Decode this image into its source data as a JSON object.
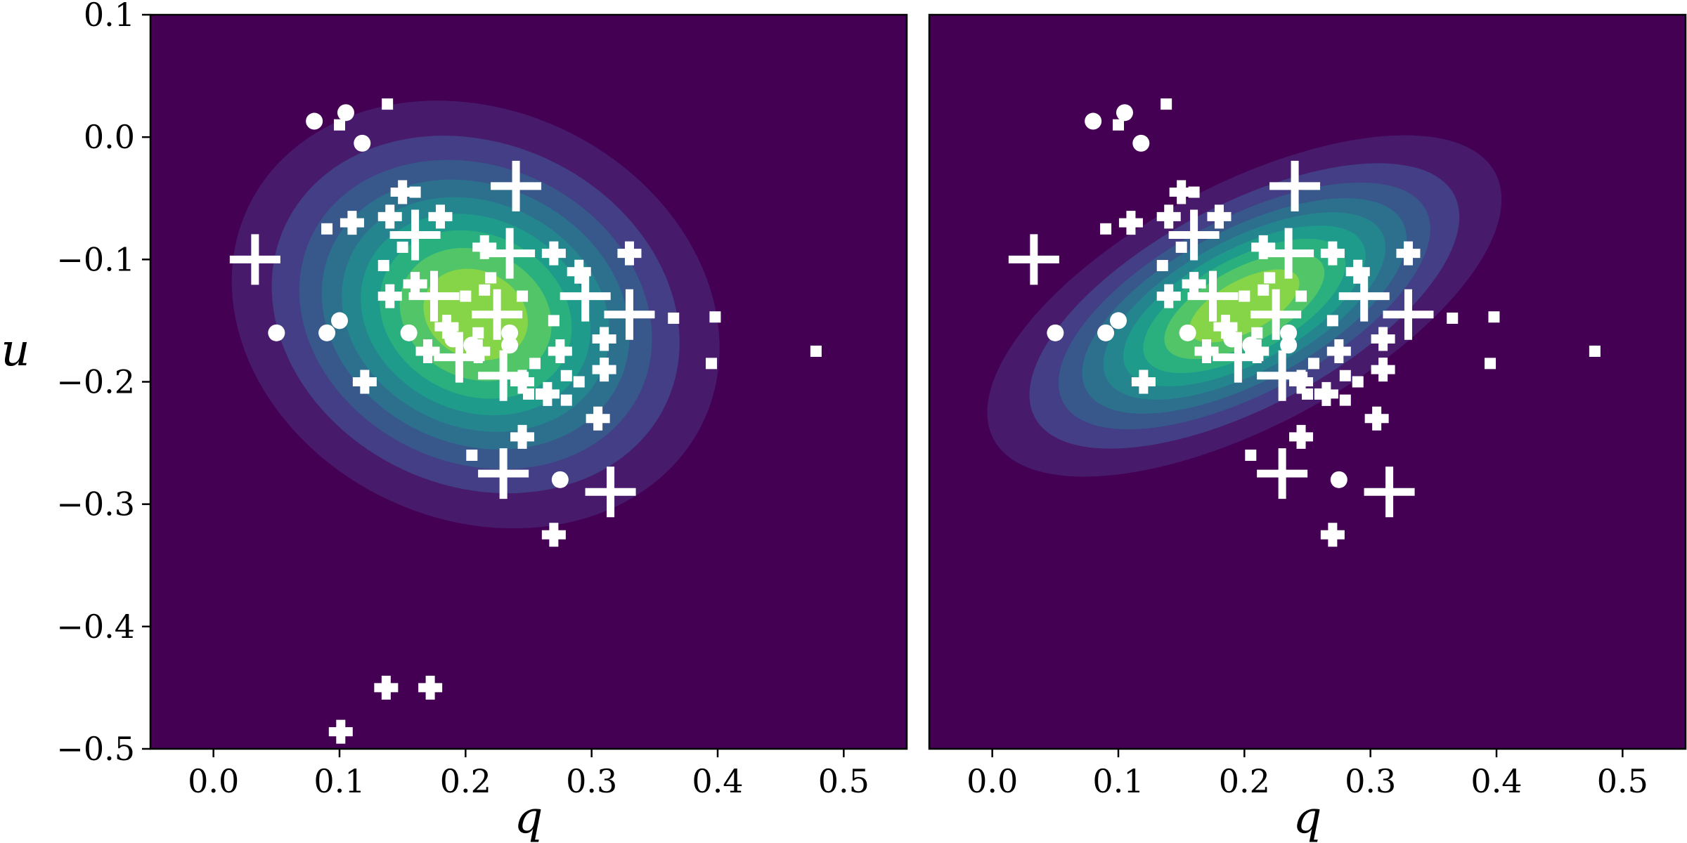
{
  "chart_data": [
    {
      "type": "contour",
      "panel": "left",
      "xlabel": "q",
      "ylabel": "u",
      "xlim": [
        -0.05,
        0.55
      ],
      "ylim": [
        -0.5,
        0.1
      ],
      "xticks": [
        "0.0",
        "0.1",
        "0.2",
        "0.3",
        "0.4",
        "0.5"
      ],
      "yticks": [
        "0.1",
        "0.0",
        "−0.1",
        "−0.2",
        "−0.3",
        "−0.4",
        "−0.5"
      ],
      "colormap": "viridis",
      "background_color": "#440154",
      "density": {
        "center": [
          0.208,
          -0.145
        ],
        "sd_major": 0.093,
        "sd_minor": 0.078,
        "angle_deg": -25,
        "levels": 9
      },
      "markers_color": "#ffffff",
      "markers": {
        "plus": [
          [
            0.033,
            -0.1
          ],
          [
            0.24,
            -0.04
          ],
          [
            0.16,
            -0.08
          ],
          [
            0.235,
            -0.095
          ],
          [
            0.295,
            -0.13
          ],
          [
            0.225,
            -0.145
          ],
          [
            0.175,
            -0.13
          ],
          [
            0.195,
            -0.18
          ],
          [
            0.23,
            -0.195
          ],
          [
            0.33,
            -0.145
          ],
          [
            0.23,
            -0.275
          ],
          [
            0.315,
            -0.29
          ]
        ],
        "cross": [
          [
            0.15,
            -0.045
          ],
          [
            0.11,
            -0.07
          ],
          [
            0.14,
            -0.065
          ],
          [
            0.18,
            -0.065
          ],
          [
            0.14,
            -0.13
          ],
          [
            0.16,
            -0.12
          ],
          [
            0.215,
            -0.09
          ],
          [
            0.27,
            -0.095
          ],
          [
            0.31,
            -0.165
          ],
          [
            0.245,
            -0.2
          ],
          [
            0.275,
            -0.175
          ],
          [
            0.29,
            -0.11
          ],
          [
            0.12,
            -0.2
          ],
          [
            0.31,
            -0.19
          ],
          [
            0.305,
            -0.23
          ],
          [
            0.265,
            -0.21
          ],
          [
            0.245,
            -0.245
          ],
          [
            0.27,
            -0.325
          ],
          [
            0.137,
            -0.45
          ],
          [
            0.172,
            -0.45
          ],
          [
            0.101,
            -0.486
          ],
          [
            0.33,
            -0.095
          ],
          [
            0.21,
            -0.175
          ],
          [
            0.17,
            -0.175
          ],
          [
            0.185,
            -0.155
          ]
        ],
        "circle": [
          [
            0.08,
            0.013
          ],
          [
            0.105,
            0.02
          ],
          [
            0.118,
            -0.005
          ],
          [
            0.05,
            -0.16
          ],
          [
            0.09,
            -0.16
          ],
          [
            0.1,
            -0.15
          ],
          [
            0.155,
            -0.16
          ],
          [
            0.19,
            -0.165
          ],
          [
            0.205,
            -0.17
          ],
          [
            0.235,
            -0.16
          ],
          [
            0.275,
            -0.28
          ],
          [
            0.235,
            -0.17
          ]
        ],
        "square": [
          [
            0.138,
            0.027
          ],
          [
            0.1,
            0.01
          ],
          [
            0.09,
            -0.075
          ],
          [
            0.16,
            -0.045
          ],
          [
            0.135,
            -0.105
          ],
          [
            0.15,
            -0.09
          ],
          [
            0.2,
            -0.13
          ],
          [
            0.21,
            -0.16
          ],
          [
            0.205,
            -0.26
          ],
          [
            0.28,
            -0.195
          ],
          [
            0.25,
            -0.21
          ],
          [
            0.365,
            -0.148
          ],
          [
            0.398,
            -0.147
          ],
          [
            0.395,
            -0.185
          ],
          [
            0.478,
            -0.175
          ],
          [
            0.29,
            -0.2
          ],
          [
            0.255,
            -0.185
          ],
          [
            0.26,
            -0.21
          ],
          [
            0.28,
            -0.215
          ],
          [
            0.22,
            -0.115
          ],
          [
            0.27,
            -0.15
          ],
          [
            0.215,
            -0.125
          ],
          [
            0.245,
            -0.13
          ]
        ]
      }
    },
    {
      "type": "contour",
      "panel": "right",
      "xlabel": "q",
      "ylabel": "",
      "xlim": [
        -0.05,
        0.55
      ],
      "ylim": [
        -0.5,
        0.1
      ],
      "xticks": [
        "0.0",
        "0.1",
        "0.2",
        "0.3",
        "0.4",
        "0.5"
      ],
      "yticks": [],
      "colormap": "viridis",
      "background_color": "#440154",
      "density": {
        "center": [
          0.2,
          -0.138
        ],
        "sd_major": 0.105,
        "sd_minor": 0.046,
        "angle_deg": 28,
        "levels": 9
      },
      "markers_color": "#ffffff",
      "markers": {
        "plus": [
          [
            0.033,
            -0.1
          ],
          [
            0.24,
            -0.04
          ],
          [
            0.16,
            -0.08
          ],
          [
            0.235,
            -0.095
          ],
          [
            0.295,
            -0.13
          ],
          [
            0.225,
            -0.145
          ],
          [
            0.175,
            -0.13
          ],
          [
            0.195,
            -0.18
          ],
          [
            0.23,
            -0.195
          ],
          [
            0.33,
            -0.145
          ],
          [
            0.23,
            -0.275
          ],
          [
            0.315,
            -0.29
          ]
        ],
        "cross": [
          [
            0.15,
            -0.045
          ],
          [
            0.11,
            -0.07
          ],
          [
            0.14,
            -0.065
          ],
          [
            0.18,
            -0.065
          ],
          [
            0.14,
            -0.13
          ],
          [
            0.16,
            -0.12
          ],
          [
            0.215,
            -0.09
          ],
          [
            0.27,
            -0.095
          ],
          [
            0.31,
            -0.165
          ],
          [
            0.245,
            -0.2
          ],
          [
            0.275,
            -0.175
          ],
          [
            0.29,
            -0.11
          ],
          [
            0.12,
            -0.2
          ],
          [
            0.31,
            -0.19
          ],
          [
            0.305,
            -0.23
          ],
          [
            0.265,
            -0.21
          ],
          [
            0.245,
            -0.245
          ],
          [
            0.27,
            -0.325
          ],
          [
            0.33,
            -0.095
          ],
          [
            0.21,
            -0.175
          ],
          [
            0.17,
            -0.175
          ],
          [
            0.185,
            -0.155
          ]
        ],
        "circle": [
          [
            0.08,
            0.013
          ],
          [
            0.105,
            0.02
          ],
          [
            0.118,
            -0.005
          ],
          [
            0.05,
            -0.16
          ],
          [
            0.09,
            -0.16
          ],
          [
            0.1,
            -0.15
          ],
          [
            0.155,
            -0.16
          ],
          [
            0.19,
            -0.165
          ],
          [
            0.205,
            -0.17
          ],
          [
            0.235,
            -0.16
          ],
          [
            0.275,
            -0.28
          ],
          [
            0.235,
            -0.17
          ]
        ],
        "square": [
          [
            0.138,
            0.027
          ],
          [
            0.1,
            0.01
          ],
          [
            0.09,
            -0.075
          ],
          [
            0.16,
            -0.045
          ],
          [
            0.135,
            -0.105
          ],
          [
            0.15,
            -0.09
          ],
          [
            0.2,
            -0.13
          ],
          [
            0.21,
            -0.16
          ],
          [
            0.205,
            -0.26
          ],
          [
            0.28,
            -0.195
          ],
          [
            0.25,
            -0.21
          ],
          [
            0.365,
            -0.148
          ],
          [
            0.398,
            -0.147
          ],
          [
            0.395,
            -0.185
          ],
          [
            0.478,
            -0.175
          ],
          [
            0.29,
            -0.2
          ],
          [
            0.255,
            -0.185
          ],
          [
            0.26,
            -0.21
          ],
          [
            0.28,
            -0.215
          ],
          [
            0.22,
            -0.115
          ],
          [
            0.27,
            -0.15
          ],
          [
            0.215,
            -0.125
          ],
          [
            0.245,
            -0.13
          ]
        ]
      }
    }
  ]
}
